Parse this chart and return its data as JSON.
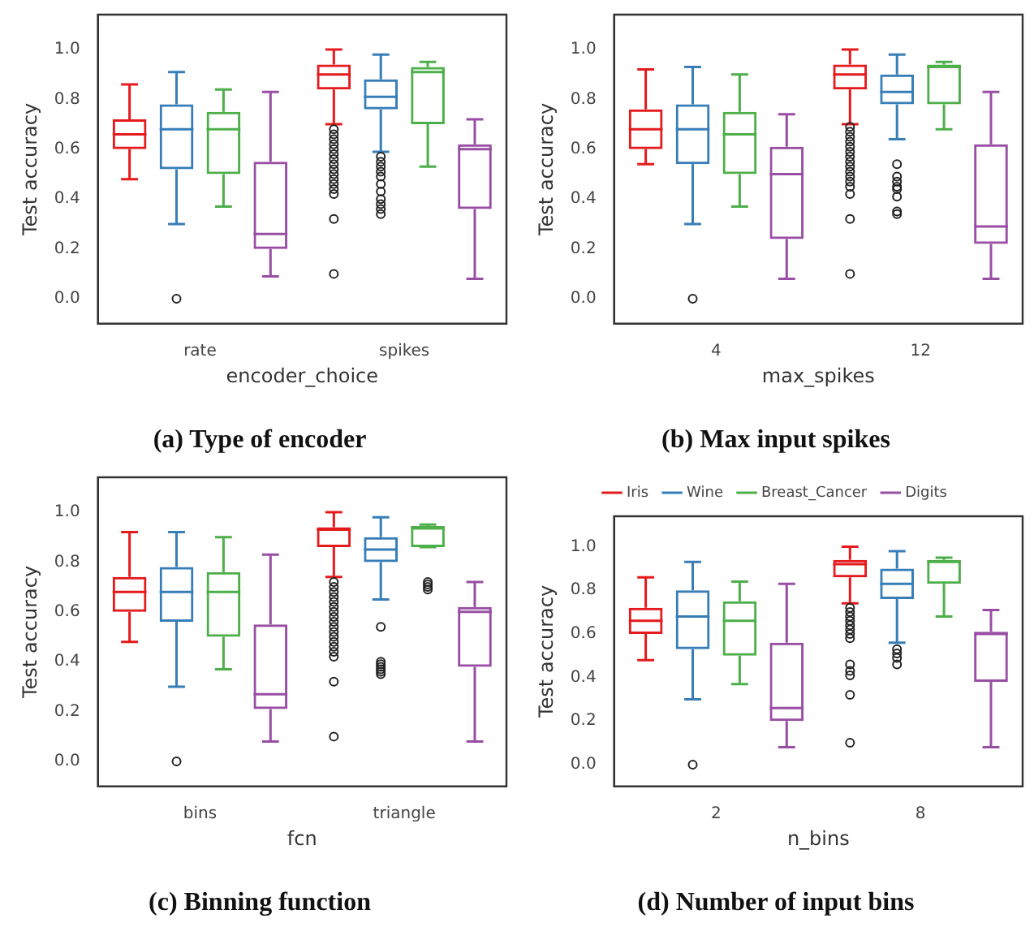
{
  "chart_data": [
    {
      "type": "box",
      "title": "(a) Type of encoder",
      "xlabel": "encoder_choice",
      "ylabel": "Test accuracy",
      "categories": [
        "rate",
        "spikes"
      ],
      "ylim": [
        -0.1,
        1.14
      ],
      "yticks": [
        {
          "value": 0,
          "label": "0.0"
        },
        {
          "value": 0.2,
          "label": "0.2"
        },
        {
          "value": 0.4,
          "label": "0.4"
        },
        {
          "value": 0.6,
          "label": "0.6"
        },
        {
          "value": 0.8,
          "label": "0.8"
        },
        {
          "value": 1,
          "label": "1.0"
        }
      ],
      "grid": false,
      "legend": false,
      "series": [
        {
          "color": "#e41a1c",
          "boxes": [
            {
              "low": 0.48,
              "q1": 0.6,
              "median": 0.66,
              "q3": 0.72,
              "high": 0.86
            },
            {
              "low": 0.7,
              "q1": 0.84,
              "median": 0.9,
              "q3": 0.94,
              "high": 1.0,
              "outliers": [
                0.68,
                0.66,
                0.64,
                0.62,
                0.6,
                0.58,
                0.56,
                0.54,
                0.52,
                0.5,
                0.48,
                0.46,
                0.44,
                0.42,
                0.32,
                0.1
              ]
            }
          ]
        },
        {
          "color": "#377eb8",
          "boxes": [
            {
              "low": 0.3,
              "q1": 0.52,
              "median": 0.68,
              "q3": 0.78,
              "high": 0.91,
              "outliers": [
                0.0
              ]
            },
            {
              "low": 0.59,
              "q1": 0.76,
              "median": 0.81,
              "q3": 0.88,
              "high": 0.98,
              "outliers": [
                0.57,
                0.55,
                0.53,
                0.51,
                0.49,
                0.46,
                0.43,
                0.4,
                0.38,
                0.36,
                0.34
              ]
            }
          ]
        },
        {
          "color": "#4daf4a",
          "boxes": [
            {
              "low": 0.37,
              "q1": 0.5,
              "median": 0.68,
              "q3": 0.75,
              "high": 0.84
            },
            {
              "low": 0.53,
              "q1": 0.7,
              "median": 0.91,
              "q3": 0.93,
              "high": 0.95
            }
          ]
        },
        {
          "color": "#984ea3",
          "boxes": [
            {
              "low": 0.09,
              "q1": 0.2,
              "median": 0.26,
              "q3": 0.55,
              "high": 0.83
            },
            {
              "low": 0.08,
              "q1": 0.36,
              "median": 0.6,
              "q3": 0.62,
              "high": 0.72
            }
          ]
        }
      ]
    },
    {
      "type": "box",
      "title": "(b) Max input spikes",
      "xlabel": "max_spikes",
      "ylabel": "Test accuracy",
      "categories": [
        "4",
        "12"
      ],
      "ylim": [
        -0.1,
        1.14
      ],
      "yticks": [
        {
          "value": 0,
          "label": "0.0"
        },
        {
          "value": 0.2,
          "label": "0.2"
        },
        {
          "value": 0.4,
          "label": "0.4"
        },
        {
          "value": 0.6,
          "label": "0.6"
        },
        {
          "value": 0.8,
          "label": "0.8"
        },
        {
          "value": 1,
          "label": "1.0"
        }
      ],
      "grid": false,
      "legend": false,
      "series": [
        {
          "color": "#e41a1c",
          "boxes": [
            {
              "low": 0.54,
              "q1": 0.6,
              "median": 0.68,
              "q3": 0.76,
              "high": 0.92
            },
            {
              "low": 0.7,
              "q1": 0.84,
              "median": 0.9,
              "q3": 0.94,
              "high": 1.0,
              "outliers": [
                0.69,
                0.67,
                0.65,
                0.63,
                0.61,
                0.59,
                0.57,
                0.55,
                0.53,
                0.51,
                0.49,
                0.47,
                0.45,
                0.42,
                0.32,
                0.1
              ]
            }
          ]
        },
        {
          "color": "#377eb8",
          "boxes": [
            {
              "low": 0.3,
              "q1": 0.54,
              "median": 0.68,
              "q3": 0.78,
              "high": 0.93,
              "outliers": [
                0.0
              ]
            },
            {
              "low": 0.64,
              "q1": 0.78,
              "median": 0.83,
              "q3": 0.9,
              "high": 0.98,
              "outliers": [
                0.54,
                0.49,
                0.47,
                0.45,
                0.44,
                0.41,
                0.35,
                0.34
              ]
            }
          ]
        },
        {
          "color": "#4daf4a",
          "boxes": [
            {
              "low": 0.37,
              "q1": 0.5,
              "median": 0.66,
              "q3": 0.75,
              "high": 0.9
            },
            {
              "low": 0.68,
              "q1": 0.78,
              "median": 0.93,
              "q3": 0.94,
              "high": 0.95
            }
          ]
        },
        {
          "color": "#984ea3",
          "boxes": [
            {
              "low": 0.08,
              "q1": 0.24,
              "median": 0.5,
              "q3": 0.61,
              "high": 0.74
            },
            {
              "low": 0.08,
              "q1": 0.22,
              "median": 0.29,
              "q3": 0.62,
              "high": 0.83
            }
          ]
        }
      ]
    },
    {
      "type": "box",
      "title": "(c) Binning function",
      "xlabel": "fcn",
      "ylabel": "Test accuracy",
      "categories": [
        "bins",
        "triangle"
      ],
      "ylim": [
        -0.1,
        1.14
      ],
      "yticks": [
        {
          "value": 0,
          "label": "0.0"
        },
        {
          "value": 0.2,
          "label": "0.2"
        },
        {
          "value": 0.4,
          "label": "0.4"
        },
        {
          "value": 0.6,
          "label": "0.6"
        },
        {
          "value": 0.8,
          "label": "0.8"
        },
        {
          "value": 1,
          "label": "1.0"
        }
      ],
      "grid": false,
      "legend": false,
      "series": [
        {
          "color": "#e41a1c",
          "boxes": [
            {
              "low": 0.48,
              "q1": 0.6,
              "median": 0.68,
              "q3": 0.74,
              "high": 0.92
            },
            {
              "low": 0.74,
              "q1": 0.86,
              "median": 0.93,
              "q3": 0.94,
              "high": 1.0,
              "outliers": [
                0.72,
                0.7,
                0.68,
                0.66,
                0.64,
                0.62,
                0.6,
                0.58,
                0.56,
                0.54,
                0.52,
                0.5,
                0.48,
                0.46,
                0.44,
                0.42,
                0.32,
                0.1
              ]
            }
          ]
        },
        {
          "color": "#377eb8",
          "boxes": [
            {
              "low": 0.3,
              "q1": 0.56,
              "median": 0.68,
              "q3": 0.78,
              "high": 0.92,
              "outliers": [
                0.0
              ]
            },
            {
              "low": 0.65,
              "q1": 0.8,
              "median": 0.85,
              "q3": 0.9,
              "high": 0.98,
              "outliers": [
                0.54,
                0.4,
                0.39,
                0.38,
                0.37,
                0.36,
                0.35
              ]
            }
          ]
        },
        {
          "color": "#4daf4a",
          "boxes": [
            {
              "low": 0.37,
              "q1": 0.5,
              "median": 0.68,
              "q3": 0.76,
              "high": 0.9
            },
            {
              "low": 0.86,
              "q1": 0.86,
              "median": 0.94,
              "q3": 0.94,
              "high": 0.95,
              "outliers": [
                0.72,
                0.71,
                0.7,
                0.69
              ]
            }
          ]
        },
        {
          "color": "#984ea3",
          "boxes": [
            {
              "low": 0.08,
              "q1": 0.21,
              "median": 0.27,
              "q3": 0.55,
              "high": 0.83
            },
            {
              "low": 0.08,
              "q1": 0.38,
              "median": 0.6,
              "q3": 0.62,
              "high": 0.72
            }
          ]
        }
      ]
    },
    {
      "type": "box",
      "title": "(d) Number of input bins",
      "xlabel": "n_bins",
      "ylabel": "Test accuracy",
      "categories": [
        "2",
        "8"
      ],
      "ylim": [
        -0.1,
        1.14
      ],
      "yticks": [
        {
          "value": 0,
          "label": "0.0"
        },
        {
          "value": 0.2,
          "label": "0.2"
        },
        {
          "value": 0.4,
          "label": "0.4"
        },
        {
          "value": 0.6,
          "label": "0.6"
        },
        {
          "value": 0.8,
          "label": "0.8"
        },
        {
          "value": 1,
          "label": "1.0"
        }
      ],
      "grid": false,
      "legend": "top",
      "series": [
        {
          "name": "Iris",
          "color": "#e41a1c",
          "boxes": [
            {
              "low": 0.48,
              "q1": 0.6,
              "median": 0.66,
              "q3": 0.72,
              "high": 0.86
            },
            {
              "low": 0.74,
              "q1": 0.86,
              "median": 0.92,
              "q3": 0.94,
              "high": 1.0,
              "outliers": [
                0.72,
                0.7,
                0.68,
                0.66,
                0.64,
                0.62,
                0.6,
                0.58,
                0.46,
                0.43,
                0.41,
                0.32,
                0.1
              ]
            }
          ]
        },
        {
          "name": "Wine",
          "color": "#377eb8",
          "boxes": [
            {
              "low": 0.3,
              "q1": 0.53,
              "median": 0.68,
              "q3": 0.8,
              "high": 0.93,
              "outliers": [
                0.0
              ]
            },
            {
              "low": 0.56,
              "q1": 0.76,
              "median": 0.83,
              "q3": 0.9,
              "high": 0.98,
              "outliers": [
                0.53,
                0.51,
                0.49,
                0.46
              ]
            }
          ]
        },
        {
          "name": "Breast_Cancer",
          "color": "#4daf4a",
          "boxes": [
            {
              "low": 0.37,
              "q1": 0.5,
              "median": 0.66,
              "q3": 0.75,
              "high": 0.84
            },
            {
              "low": 0.68,
              "q1": 0.83,
              "median": 0.93,
              "q3": 0.94,
              "high": 0.95
            }
          ]
        },
        {
          "name": "Digits",
          "color": "#984ea3",
          "boxes": [
            {
              "low": 0.08,
              "q1": 0.2,
              "median": 0.26,
              "q3": 0.56,
              "high": 0.83
            },
            {
              "low": 0.08,
              "q1": 0.38,
              "median": 0.6,
              "q3": 0.61,
              "high": 0.71
            }
          ]
        }
      ]
    }
  ]
}
